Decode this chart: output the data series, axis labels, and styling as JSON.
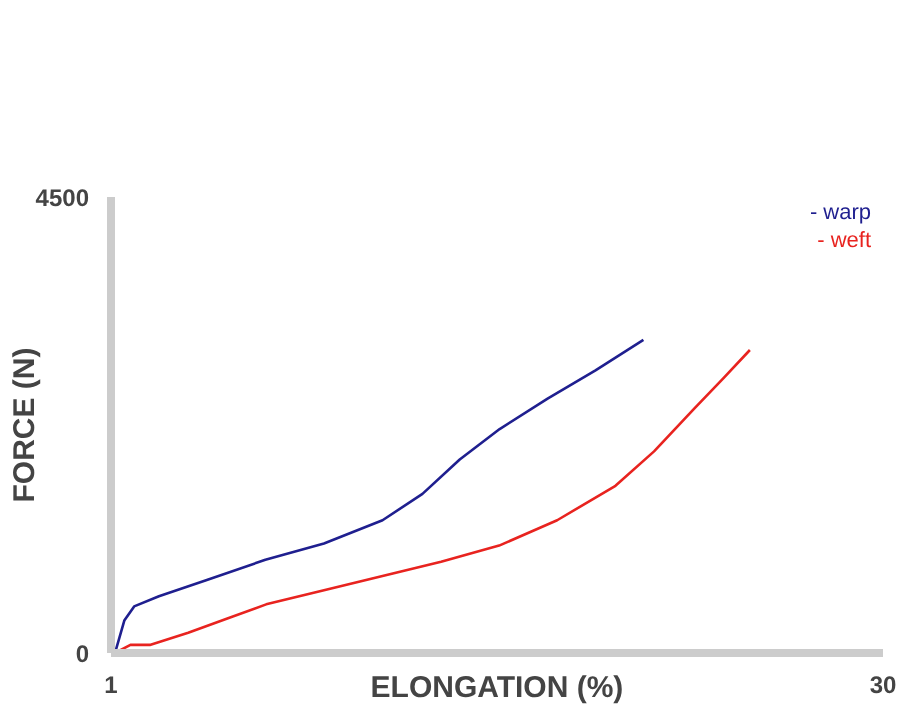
{
  "chart_data": {
    "type": "line",
    "xlabel": "ELONGATION (%)",
    "ylabel": "FORCE (N)",
    "xlim": [
      1,
      30
    ],
    "ylim": [
      0,
      4500
    ],
    "xticks": [
      1,
      30
    ],
    "yticks": [
      0,
      4500
    ],
    "marker": "none",
    "line_style": "solid",
    "series": [
      {
        "name": "- warp",
        "color": "#1f1f8f",
        "x": [
          1.15,
          1.5,
          1.87,
          2.8,
          4.6,
          6.8,
          9.0,
          11.2,
          12.7,
          14.1,
          15.6,
          17.4,
          19.2,
          21.0
        ],
        "values": [
          0,
          320,
          460,
          560,
          720,
          920,
          1080,
          1310,
          1570,
          1910,
          2210,
          2510,
          2790,
          3090
        ]
      },
      {
        "name": "- weft",
        "color": "#e8231f",
        "x": [
          1.15,
          1.73,
          2.46,
          3.9,
          5.37,
          6.83,
          9.0,
          11.2,
          13.4,
          15.58,
          17.76,
          19.95,
          21.4,
          22.9,
          24.0,
          25.0
        ],
        "values": [
          0,
          80,
          80,
          200,
          340,
          480,
          620,
          760,
          900,
          1060,
          1310,
          1650,
          1990,
          2410,
          2710,
          2990
        ]
      }
    ]
  }
}
